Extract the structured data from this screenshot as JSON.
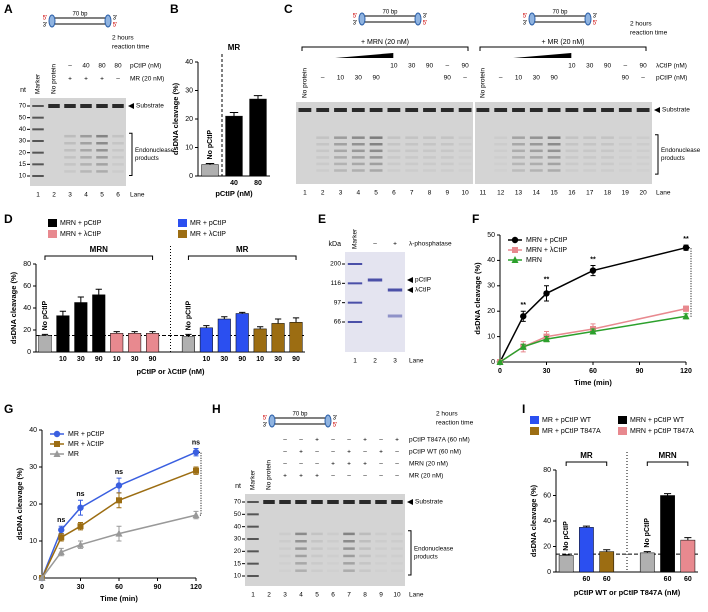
{
  "letters": [
    "A",
    "B",
    "C",
    "D",
    "E",
    "F",
    "G",
    "H",
    "I"
  ],
  "gels": {
    "A": {
      "schematics": [
        {
          "length": "70 bp",
          "ends": [
            "5'",
            "3'",
            "3'",
            "5'"
          ]
        }
      ],
      "time": [
        "2 hours",
        "reaction time"
      ],
      "nt": "nt",
      "sizes": [
        "70",
        "50",
        "40",
        "30",
        "20",
        "15",
        "10"
      ],
      "top_labels": [
        "Marker",
        "No protein",
        null,
        null,
        null,
        null
      ],
      "rows": [
        {
          "label": "pCtIP (nM)",
          "cells": [
            null,
            null,
            "–",
            "40",
            "80",
            "80"
          ]
        },
        {
          "label": "MR (20 nM)",
          "cells": [
            null,
            null,
            "+",
            "+",
            "+",
            "–"
          ]
        }
      ],
      "substrate": "Substrate",
      "products": [
        "Endonuclease",
        "products"
      ],
      "lane_label": "Lane",
      "lanes": [
        "1",
        "2",
        "3",
        "4",
        "5",
        "6"
      ]
    },
    "C": {
      "schematics": [
        {
          "length": "70 bp",
          "ends": [
            "5'",
            "3'",
            "3'",
            "5'"
          ]
        },
        {
          "length": "70 bp",
          "ends": [
            "5'",
            "3'",
            "3'",
            "5'"
          ]
        }
      ],
      "groups": [
        "+ MRN (20 nM)",
        "+ MR (20 nM)"
      ],
      "time": [
        "2 hours",
        "reaction time"
      ],
      "top_labels": [
        "No protein",
        null,
        null,
        null,
        null,
        null,
        null,
        null,
        null,
        null,
        "No protein",
        null,
        null,
        null,
        null,
        null,
        null,
        null,
        null,
        null
      ],
      "rows": [
        {
          "label": "λCtIP (nM)",
          "cells": [
            null,
            null,
            null,
            null,
            null,
            "10",
            "30",
            "90",
            "–",
            "90",
            null,
            null,
            null,
            null,
            null,
            "10",
            "30",
            "90",
            "–",
            "90"
          ]
        },
        {
          "label": "pCtIP (nM)",
          "cells": [
            null,
            "–",
            "10",
            "30",
            "90",
            null,
            null,
            null,
            "90",
            "–",
            null,
            "–",
            "10",
            "30",
            "90",
            null,
            null,
            null,
            "90",
            "–"
          ]
        }
      ],
      "substrate": "Substrate",
      "products": [
        "Endonuclease",
        "products"
      ],
      "lane_label": "Lane",
      "lanes": [
        "1",
        "2",
        "3",
        "4",
        "5",
        "6",
        "7",
        "8",
        "9",
        "10",
        "11",
        "12",
        "13",
        "14",
        "15",
        "16",
        "17",
        "18",
        "19",
        "20"
      ]
    },
    "E": {
      "unit": "kDa",
      "sizes": [
        "200",
        "116",
        "97",
        "66"
      ],
      "top_labels": [
        "Marker",
        null,
        null
      ],
      "rows": [
        {
          "label": "λ-phosphatase",
          "cells": [
            null,
            "–",
            "+"
          ]
        }
      ],
      "bands": [
        "pCtIP",
        "λCtIP"
      ],
      "lane_label": "Lane",
      "lanes": [
        "1",
        "2",
        "3"
      ]
    },
    "H": {
      "schematics": [
        {
          "length": "70 bp",
          "ends": [
            "5'",
            "3'",
            "3'",
            "5'"
          ]
        }
      ],
      "time": [
        "2 hours",
        "reaction time"
      ],
      "nt": "nt",
      "sizes": [
        "70",
        "50",
        "40",
        "30",
        "20",
        "15",
        "10"
      ],
      "top_labels": [
        "Marker",
        "No protein",
        null,
        null,
        null,
        null,
        null,
        null,
        null,
        null
      ],
      "rows": [
        {
          "label": "pCtIP T847A (60 nM)",
          "cells": [
            null,
            null,
            "–",
            "–",
            "+",
            "–",
            "–",
            "+",
            "–",
            "+"
          ]
        },
        {
          "label": "pCtIP WT (60 nM)",
          "cells": [
            null,
            null,
            "–",
            "+",
            "–",
            "–",
            "+",
            "–",
            "+",
            "–"
          ]
        },
        {
          "label": "MRN (20 nM)",
          "cells": [
            null,
            null,
            "–",
            "–",
            "–",
            "+",
            "+",
            "+",
            "–",
            "–"
          ]
        },
        {
          "label": "MR (20 nM)",
          "cells": [
            null,
            null,
            "+",
            "+",
            "+",
            "–",
            "–",
            "–",
            "–",
            "–"
          ]
        }
      ],
      "substrate": "Substrate",
      "products": [
        "Endonuclease",
        "products"
      ],
      "lane_label": "Lane",
      "lanes": [
        "1",
        "2",
        "3",
        "4",
        "5",
        "6",
        "7",
        "8",
        "9",
        "10"
      ]
    }
  },
  "chart_data": [
    {
      "type": "bar",
      "header": "MR",
      "y_label": "dsDNA cleavage (%)",
      "x_label": "pCtIP (nM)",
      "categories": [
        "No pCtIP",
        "40",
        "80"
      ],
      "values": [
        4,
        21,
        27
      ],
      "errors": [
        0.4,
        1.3,
        1.2
      ],
      "colors": [
        "#b0b0b0",
        "#000000",
        "#000000"
      ],
      "ylim": [
        0,
        40
      ],
      "yticks": [
        0,
        10,
        20,
        30,
        40
      ]
    },
    {
      "type": "bar",
      "groups": [
        "MRN",
        "MR"
      ],
      "y_label": "dsDNA cleavage (%)",
      "x_label": "pCtIP or λCtIP (nM)",
      "legend": [
        {
          "name": "MRN + pCtIP",
          "color": "#000000"
        },
        {
          "name": "MRN + λCtIP",
          "color": "#e8898f"
        },
        {
          "name": "MR + pCtIP",
          "color": "#2b4ff0"
        },
        {
          "name": "MR + λCtIP",
          "color": "#9c6d12"
        }
      ],
      "categories": [
        "No pCtIP",
        "10",
        "30",
        "90",
        "10",
        "30",
        "90",
        "No pCtIP",
        "10",
        "30",
        "90",
        "10",
        "30",
        "90"
      ],
      "values": [
        15,
        33,
        45,
        52,
        17,
        17,
        17,
        14,
        22,
        30,
        35,
        21,
        26,
        27
      ],
      "errors": [
        1,
        4,
        5,
        5,
        1.5,
        1.5,
        1.5,
        2,
        2,
        2,
        1,
        2,
        4,
        4
      ],
      "colors": [
        "#b0b0b0",
        "#000000",
        "#000000",
        "#000000",
        "#e8898f",
        "#e8898f",
        "#e8898f",
        "#b0b0b0",
        "#2b4ff0",
        "#2b4ff0",
        "#2b4ff0",
        "#9c6d12",
        "#9c6d12",
        "#9c6d12"
      ],
      "reference_line": 15,
      "ylim": [
        0,
        80
      ],
      "yticks": [
        0,
        20,
        40,
        60,
        80
      ]
    },
    {
      "type": "line",
      "y_label": "dsDNA cleavage (%)",
      "x_label": "Time (min)",
      "x": [
        0,
        15,
        30,
        60,
        120
      ],
      "xlim": [
        0,
        120
      ],
      "xticks": [
        0,
        30,
        60,
        90,
        120
      ],
      "ylim": [
        0,
        50
      ],
      "yticks": [
        0,
        10,
        20,
        30,
        40,
        50
      ],
      "series": [
        {
          "name": "MRN + pCtIP",
          "color": "#000000",
          "marker": "circle",
          "values": [
            0,
            18,
            27,
            36,
            45
          ],
          "errors": [
            0,
            2,
            3,
            2,
            1
          ]
        },
        {
          "name": "MRN + λCtIP",
          "color": "#e8898f",
          "marker": "square",
          "values": [
            0,
            6,
            10,
            13,
            21
          ],
          "errors": [
            0,
            2,
            2,
            2,
            1
          ]
        },
        {
          "name": "MRN",
          "color": "#2ca02c",
          "marker": "triangle",
          "values": [
            0,
            6,
            9,
            12,
            18
          ],
          "errors": [
            0,
            1,
            1,
            1,
            1
          ]
        }
      ],
      "annotations": [
        {
          "text": "**",
          "x": 15
        },
        {
          "text": "**",
          "x": 30
        },
        {
          "text": "**",
          "x": 60
        },
        {
          "text": "**",
          "x": 120
        }
      ]
    },
    {
      "type": "line",
      "y_label": "dsDNA cleavage (%)",
      "x_label": "Time (min)",
      "x": [
        0,
        15,
        30,
        60,
        120
      ],
      "xlim": [
        0,
        120
      ],
      "xticks": [
        0,
        30,
        60,
        90,
        120
      ],
      "ylim": [
        0,
        40
      ],
      "yticks": [
        0,
        10,
        20,
        30,
        40
      ],
      "series": [
        {
          "name": "MR + pCtIP",
          "color": "#3a5fe0",
          "marker": "circle",
          "values": [
            0,
            13,
            19,
            25,
            34
          ],
          "errors": [
            0,
            1,
            2,
            2,
            1
          ]
        },
        {
          "name": "MR + λCtIP",
          "color": "#9c6d12",
          "marker": "square",
          "values": [
            0,
            11,
            14,
            21,
            29
          ],
          "errors": [
            0,
            1,
            1,
            2,
            1
          ]
        },
        {
          "name": "MR",
          "color": "#999999",
          "marker": "triangle",
          "values": [
            0,
            7,
            9,
            12,
            17
          ],
          "errors": [
            0,
            1,
            1,
            2,
            1
          ]
        }
      ],
      "annotations": [
        {
          "text": "ns",
          "x": 15
        },
        {
          "text": "ns",
          "x": 30
        },
        {
          "text": "ns",
          "x": 60
        },
        {
          "text": "ns",
          "x": 120
        }
      ]
    },
    {
      "type": "bar",
      "groups": [
        "MR",
        "MRN"
      ],
      "y_label": "dsDNA cleavage (%)",
      "x_label": "pCtIP WT or pCtIP T847A (nM)",
      "legend": [
        {
          "name": "MR + pCtIP WT",
          "color": "#2b4ff0"
        },
        {
          "name": "MR + pCtIP T847A",
          "color": "#9c6d12"
        },
        {
          "name": "MRN + pCtIP WT",
          "color": "#000000"
        },
        {
          "name": "MRN + pCtIP T847A",
          "color": "#e8898f"
        }
      ],
      "categories": [
        "No pCtIP",
        "60",
        "60",
        "No pCtIP",
        "60",
        "60"
      ],
      "values": [
        13,
        35,
        16,
        15,
        60,
        25
      ],
      "errors": [
        0.5,
        1,
        1.5,
        1,
        1.5,
        2
      ],
      "colors": [
        "#b0b0b0",
        "#2b4ff0",
        "#9c6d12",
        "#b0b0b0",
        "#000000",
        "#e8898f"
      ],
      "reference_line": 14,
      "ylim": [
        0,
        80
      ],
      "yticks": [
        0,
        20,
        40,
        60,
        80
      ]
    }
  ]
}
